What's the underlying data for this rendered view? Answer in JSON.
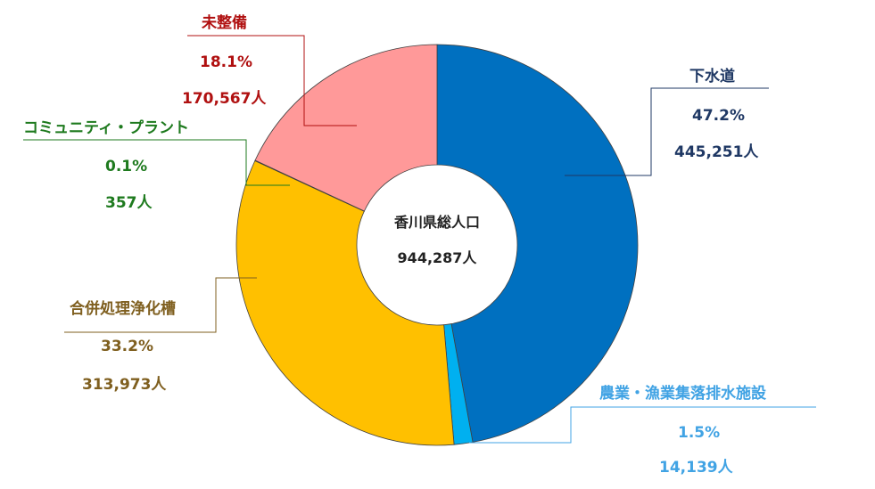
{
  "chart_data": {
    "type": "pie",
    "donut": true,
    "center_title": "香川県総人口",
    "center_value": "944,287人",
    "slices": [
      {
        "name": "下水道",
        "percent_label": "47.2%",
        "count_label": "445,251人",
        "value": 445251,
        "color": "#0070C0",
        "label_color": "#1F3864"
      },
      {
        "name": "農業・漁業集落排水施設",
        "percent_label": "1.5%",
        "count_label": "14,139人",
        "value": 14139,
        "color": "#00B0F0",
        "label_color": "#41A3E4"
      },
      {
        "name": "合併処理浄化槽",
        "percent_label": "33.2%",
        "count_label": "313,973人",
        "value": 313973,
        "color": "#FFC000",
        "label_color": "#7F5F1F"
      },
      {
        "name": "コミュニティ・プラント",
        "percent_label": "0.1%",
        "count_label": "357人",
        "value": 357,
        "color": "#92D050",
        "label_color": "#1E7A1E"
      },
      {
        "name": "未整備",
        "percent_label": "18.1%",
        "count_label": "170,567人",
        "value": 170567,
        "color": "#FF9999",
        "label_color": "#B01010"
      }
    ]
  }
}
